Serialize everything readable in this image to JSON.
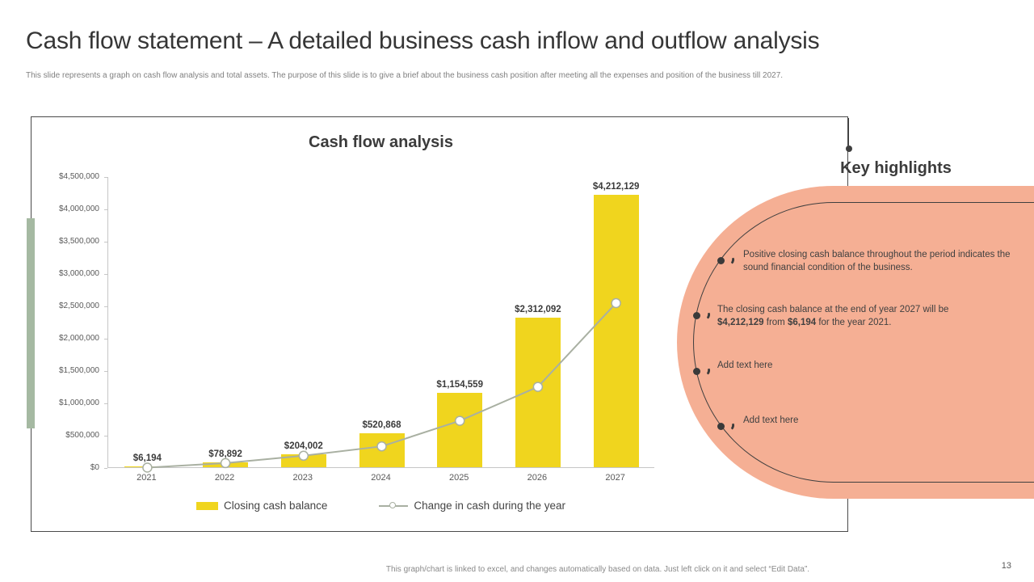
{
  "slide": {
    "title": "Cash flow statement – A detailed business cash inflow and outflow analysis",
    "subtitle": "This slide represents a graph on cash flow analysis and total assets. The purpose of this slide is to give a brief about the business cash position after meeting all the expenses and position of the business till 2027.",
    "footer_note": "This graph/chart is linked to excel, and changes automatically based on data. Just left click on it and select “Edit Data”.",
    "page_number": "13"
  },
  "chart_data": {
    "type": "bar",
    "title": "Cash flow analysis",
    "categories": [
      "2021",
      "2022",
      "2023",
      "2024",
      "2025",
      "2026",
      "2027"
    ],
    "series": [
      {
        "name": "Closing cash balance",
        "type": "bar",
        "color": "#F0D51E",
        "values": [
          6194,
          78892,
          204002,
          520868,
          1154559,
          2312092,
          4212129
        ],
        "labels": [
          "$6,194",
          "$78,892",
          "$204,002",
          "$520,868",
          "$1,154,559",
          "$2,312,092",
          "$4,212,129"
        ]
      },
      {
        "name": "Change in cash during the year",
        "type": "line",
        "color": "#A9B0A2",
        "values": [
          6194,
          76000,
          190000,
          335000,
          730000,
          1255000,
          2550000
        ]
      }
    ],
    "ylim": [
      0,
      4500000
    ],
    "y_tick_step": 500000,
    "y_tick_labels": [
      "$0",
      "$500,000",
      "$1,000,000",
      "$1,500,000",
      "$2,000,000",
      "$2,500,000",
      "$3,000,000",
      "$3,500,000",
      "$4,000,000",
      "$4,500,000"
    ],
    "grid": false,
    "legend_position": "bottom"
  },
  "key_highlights": {
    "title": "Key highlights",
    "bullets": [
      {
        "segments": [
          {
            "text": "Positive closing cash balance throughout the period indicates the sound financial condition of the business.",
            "bold": false
          }
        ]
      },
      {
        "segments": [
          {
            "text": "The closing cash balance at the end of year 2027 will be ",
            "bold": false
          },
          {
            "text": "$4,212,129",
            "bold": true
          },
          {
            "text": " from ",
            "bold": false
          },
          {
            "text": "$6,194",
            "bold": true
          },
          {
            "text": " for the year 2021.",
            "bold": false
          }
        ]
      },
      {
        "segments": [
          {
            "text": "Add text here",
            "bold": false
          }
        ]
      },
      {
        "segments": [
          {
            "text": "Add text here",
            "bold": false
          }
        ]
      }
    ]
  },
  "colors": {
    "bar_yellow": "#F0D51E",
    "line_gray_green": "#A9B0A2",
    "accent_green": "#A5B9A2",
    "highlight_salmon": "#F5AF94",
    "dark_text": "#3b3b3b"
  }
}
